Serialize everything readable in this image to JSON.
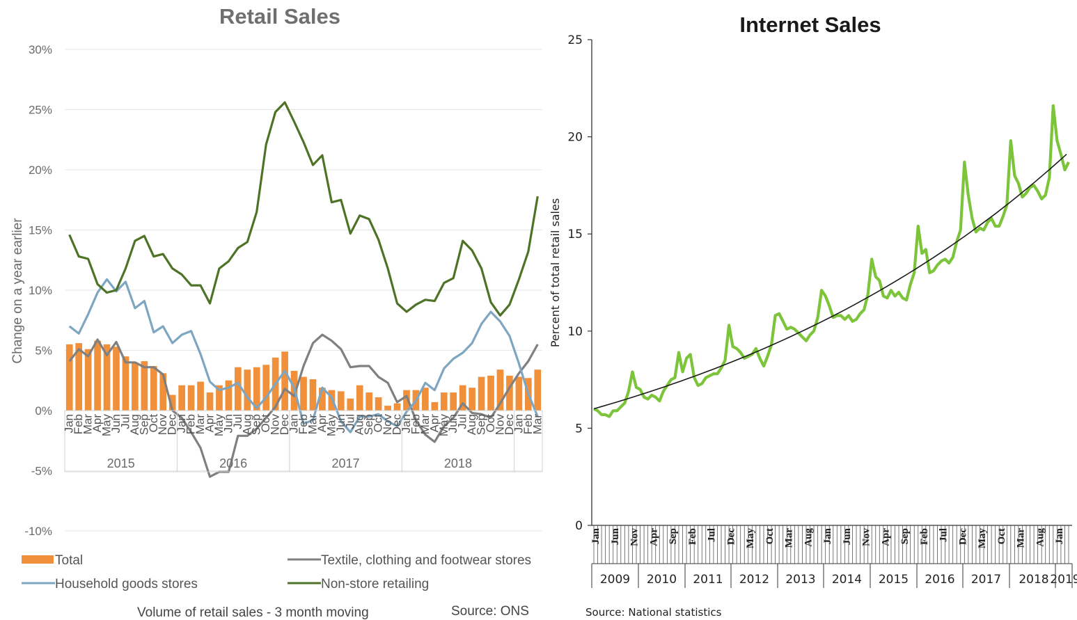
{
  "chart_data": [
    {
      "type": "bar+line",
      "title": "Retail Sales",
      "ylabel": "Change on a year earlier",
      "ylim": [
        -10,
        30
      ],
      "yticks": [
        "-10%",
        "-5%",
        "0%",
        "5%",
        "10%",
        "15%",
        "20%",
        "25%",
        "30%"
      ],
      "grid": true,
      "months": [
        "Jan",
        "Feb",
        "Mar",
        "Apr",
        "May",
        "Jun",
        "Jul",
        "Aug",
        "Sep",
        "Oct",
        "Nov",
        "Dec",
        "Jan",
        "Feb",
        "Mar",
        "Apr",
        "May",
        "Jun",
        "Jul",
        "Aug",
        "Sep",
        "Oct",
        "Nov",
        "Dec",
        "Jan",
        "Feb",
        "Mar",
        "Apr",
        "May",
        "Jun",
        "Jul",
        "Aug",
        "Sep",
        "Oct",
        "Nov",
        "Dec",
        "Jan",
        "Feb",
        "Mar",
        "Apr",
        "May",
        "Jun",
        "Jul",
        "Aug",
        "Sep",
        "Oct",
        "Nov",
        "Dec",
        "Jan",
        "Feb",
        "Mar"
      ],
      "years": [
        "2015",
        "2016",
        "2017",
        "2018"
      ],
      "series": [
        {
          "name": "Total",
          "kind": "bar",
          "color": "#f0903a",
          "values": [
            5.5,
            5.6,
            5.1,
            5.8,
            5.5,
            5.3,
            4.5,
            4.0,
            4.1,
            3.7,
            3.1,
            1.3,
            2.1,
            2.1,
            2.4,
            1.5,
            2.1,
            2.5,
            3.6,
            3.4,
            3.6,
            3.8,
            4.4,
            4.9,
            3.3,
            2.8,
            2.6,
            1.9,
            1.7,
            1.6,
            1.0,
            2.1,
            1.5,
            1.1,
            0.4,
            0.6,
            1.7,
            1.7,
            1.9,
            0.7,
            1.5,
            1.5,
            2.1,
            1.9,
            2.8,
            2.9,
            3.4,
            2.9,
            2.8,
            2.7,
            3.4
          ]
        },
        {
          "name": "Textile, clothing and footwear stores",
          "kind": "line",
          "color": "#808080",
          "values": [
            4.1,
            5.1,
            4.5,
            5.9,
            4.6,
            5.7,
            4.0,
            4.0,
            3.6,
            3.6,
            3.0,
            0.0,
            -0.6,
            -1.8,
            -3.1,
            -5.5,
            -5.1,
            -5.1,
            -2.1,
            -2.1,
            -1.5,
            -0.6,
            0.3,
            1.8,
            1.2,
            3.7,
            5.6,
            6.3,
            5.8,
            5.1,
            3.6,
            3.7,
            3.7,
            2.8,
            2.3,
            0.7,
            1.2,
            -0.8,
            -2.0,
            -2.6,
            -1.3,
            -0.6,
            0.6,
            -0.2,
            -0.3,
            -0.6,
            0.6,
            1.9,
            3.1,
            4.1,
            5.5
          ]
        },
        {
          "name": "Household goods stores",
          "kind": "line",
          "color": "#7ea6c0",
          "values": [
            7.0,
            6.4,
            8.0,
            9.8,
            10.9,
            9.9,
            10.7,
            8.5,
            9.1,
            6.5,
            7.0,
            5.6,
            6.3,
            6.6,
            4.7,
            2.4,
            1.7,
            1.9,
            2.3,
            1.1,
            0.2,
            1.1,
            2.2,
            3.3,
            1.9,
            -1.1,
            -0.8,
            1.9,
            1.1,
            -0.9,
            -1.8,
            -0.5,
            -0.5,
            -0.3,
            -0.9,
            -1.3,
            -0.1,
            0.8,
            2.3,
            1.7,
            3.5,
            4.3,
            4.8,
            5.6,
            7.2,
            8.2,
            7.4,
            6.2,
            3.9,
            1.4,
            -0.5
          ]
        },
        {
          "name": "Non-store retailing",
          "kind": "line",
          "color": "#4e7326",
          "values": [
            14.6,
            12.8,
            12.6,
            10.5,
            9.8,
            10.0,
            11.8,
            14.1,
            14.5,
            12.8,
            13.0,
            11.8,
            11.3,
            10.4,
            10.4,
            8.9,
            11.8,
            12.4,
            13.5,
            14.0,
            16.5,
            22.1,
            24.8,
            25.6,
            24.0,
            22.3,
            20.4,
            21.2,
            17.3,
            17.5,
            14.7,
            16.2,
            15.9,
            14.2,
            11.8,
            8.9,
            8.2,
            8.8,
            9.2,
            9.1,
            10.6,
            11.0,
            14.1,
            13.3,
            11.8,
            9.0,
            7.9,
            8.8,
            10.9,
            13.2,
            17.8
          ]
        }
      ],
      "legend": [
        "Total",
        "Textile, clothing and footwear stores",
        "Household goods stores",
        "Non-store retailing"
      ],
      "legend_position": "bottom",
      "footnote": "Volume  of retail sales - 3 month moving",
      "source": "Source: ONS"
    },
    {
      "type": "line",
      "title": "Internet Sales",
      "ylabel": "Percent of total retail sales",
      "ylim": [
        0,
        25
      ],
      "yticks": [
        "0",
        "5",
        "10",
        "15",
        "20",
        "25"
      ],
      "grid": false,
      "years": [
        "2009",
        "2010",
        "2011",
        "2012",
        "2013",
        "2014",
        "2015",
        "2016",
        "2017",
        "2018",
        "2019"
      ],
      "month_tick_labels": [
        "Jan",
        "Jun",
        "Nov",
        "Apr",
        "Sep",
        "Feb",
        "Jul",
        "Dec",
        "May",
        "Oct",
        "Mar",
        "Aug",
        "Jan",
        "Jun",
        "Nov",
        "Apr",
        "Sep",
        "Feb",
        "Jul",
        "Dec",
        "May",
        "Oct",
        "Mar",
        "Aug",
        "Jan"
      ],
      "series": [
        {
          "name": "Internet sales",
          "color": "#7cc43a",
          "values": [
            6.0,
            5.9,
            5.7,
            5.7,
            5.6,
            5.9,
            5.9,
            6.1,
            6.3,
            6.9,
            7.9,
            7.1,
            7.0,
            6.6,
            6.5,
            6.7,
            6.6,
            6.4,
            6.9,
            7.2,
            7.5,
            7.6,
            8.9,
            7.9,
            8.6,
            8.8,
            7.6,
            7.2,
            7.3,
            7.6,
            7.7,
            7.8,
            7.8,
            8.1,
            8.5,
            10.3,
            9.2,
            9.1,
            8.9,
            8.6,
            8.7,
            8.8,
            9.1,
            8.6,
            8.2,
            8.7,
            9.3,
            10.8,
            10.9,
            10.5,
            10.1,
            10.2,
            10.1,
            9.9,
            9.7,
            9.5,
            9.8,
            10.0,
            10.7,
            12.1,
            11.8,
            11.3,
            10.7,
            10.8,
            10.8,
            10.6,
            10.8,
            10.5,
            10.6,
            10.9,
            11.1,
            11.9,
            13.7,
            12.8,
            12.6,
            11.8,
            11.7,
            12.1,
            11.8,
            12.0,
            11.7,
            11.6,
            12.4,
            13.0,
            15.4,
            14.0,
            14.2,
            13.0,
            13.1,
            13.4,
            13.6,
            13.7,
            13.5,
            13.8,
            14.6,
            15.2,
            18.7,
            17.0,
            15.8,
            15.1,
            15.3,
            15.2,
            15.6,
            15.8,
            15.4,
            15.4,
            15.9,
            16.5,
            19.8,
            18.0,
            17.6,
            16.9,
            17.1,
            17.4,
            17.5,
            17.2,
            16.8,
            17.0,
            17.9,
            21.6,
            19.8,
            19.1,
            18.3,
            18.7
          ]
        },
        {
          "name": "Trend",
          "color": "#1a1a1a",
          "values": [
            6.0,
            19.1
          ]
        }
      ],
      "source": "Source: National statistics"
    }
  ]
}
